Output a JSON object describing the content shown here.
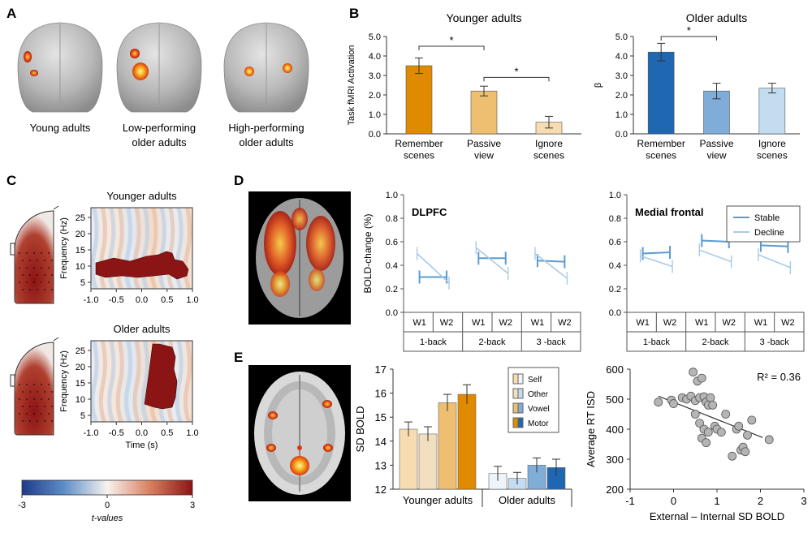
{
  "panel_letters": {
    "a": "A",
    "b": "B",
    "c": "C",
    "d": "D",
    "e": "E"
  },
  "panel_a": {
    "captions": [
      "Young adults",
      "Low-performing\nolder adults",
      "High-performing\nolder adults"
    ]
  },
  "colors": {
    "orange_dark": "#e08a00",
    "orange_mid": "#eebf70",
    "orange_light": "#f6dcb0",
    "blue_dark": "#1f67b1",
    "blue_mid": "#80acd8",
    "blue_light": "#c4dcef",
    "line_stable": "#5b9bd0",
    "line_decline": "#a9cbe8",
    "brain_red": "#8b1414"
  },
  "panel_c": {
    "titles": [
      "Younger adults",
      "Older adults"
    ],
    "ylabel": "Frequency (Hz)",
    "xlabel": "Time (s)",
    "xticks": [
      "-1.0",
      "-0.5",
      "0.0",
      "0.5",
      "1.0"
    ],
    "yticks": [
      "5",
      "10",
      "15",
      "20",
      "25"
    ],
    "colorbar": {
      "min": "-3",
      "mid": "0",
      "max": "3",
      "label": "t-values"
    }
  },
  "chart_data": [
    {
      "type": "bar",
      "title": "Younger adults",
      "ylabel": "Task fMRI Activation",
      "categories": [
        "Remember\nscenes",
        "Passive\nview",
        "Ignore\nscenes"
      ],
      "values": [
        3.5,
        2.2,
        0.6
      ],
      "errors": [
        0.4,
        0.25,
        0.3
      ],
      "ylim": [
        0,
        5
      ],
      "yticks": [
        "0.0",
        "1.0",
        "2.0",
        "3.0",
        "4.0",
        "5.0"
      ],
      "sig": [
        {
          "from": 0,
          "to": 1,
          "label": "*",
          "y": 4.5
        },
        {
          "from": 1,
          "to": 2,
          "label": "*",
          "y": 2.9
        }
      ]
    },
    {
      "type": "bar",
      "title": "Older adults",
      "ylabel": "β",
      "categories": [
        "Remember\nscenes",
        "Passive\nview",
        "Ignore\nscenes"
      ],
      "values": [
        4.2,
        2.2,
        2.35
      ],
      "errors": [
        0.45,
        0.4,
        0.25
      ],
      "ylim": [
        0,
        5
      ],
      "yticks": [
        "0.0",
        "1.0",
        "2.0",
        "3.0",
        "4.0",
        "5.0"
      ],
      "sig": [
        {
          "from": 0,
          "to": 1,
          "label": "*",
          "y": 5.0
        }
      ]
    },
    {
      "type": "line",
      "title": "DLPFC",
      "ylabel": "BOLD-change (%)",
      "ylim": [
        0,
        1
      ],
      "yticks": [
        "0.0",
        "0.2",
        "0.4",
        "0.6",
        "0.8",
        "1.0"
      ],
      "groups": [
        "1-back",
        "2-back",
        "3 -back"
      ],
      "sublabels": [
        "W1",
        "W2"
      ],
      "series": [
        {
          "name": "Stable",
          "values": [
            [
              0.3,
              0.3
            ],
            [
              0.46,
              0.46
            ],
            [
              0.44,
              0.43
            ]
          ]
        },
        {
          "name": "Decline",
          "values": [
            [
              0.5,
              0.25
            ],
            [
              0.55,
              0.33
            ],
            [
              0.5,
              0.29
            ]
          ]
        }
      ]
    },
    {
      "type": "line",
      "title": "Medial frontal",
      "ylim": [
        0,
        1
      ],
      "yticks": [
        "0.0",
        "0.2",
        "0.4",
        "0.6",
        "0.8",
        "1.0"
      ],
      "groups": [
        "1-back",
        "2-back",
        "3 -back"
      ],
      "sublabels": [
        "W1",
        "W2"
      ],
      "legend": {
        "position": "top-right"
      },
      "series": [
        {
          "name": "Stable",
          "values": [
            [
              0.5,
              0.51
            ],
            [
              0.61,
              0.6
            ],
            [
              0.57,
              0.56
            ]
          ]
        },
        {
          "name": "Decline",
          "values": [
            [
              0.48,
              0.39
            ],
            [
              0.53,
              0.43
            ],
            [
              0.49,
              0.38
            ]
          ]
        }
      ]
    },
    {
      "type": "bar",
      "ylabel": "SD BOLD",
      "ylim": [
        12,
        17
      ],
      "yticks": [
        "12",
        "13",
        "14",
        "15",
        "16",
        "17"
      ],
      "groups": [
        "Younger adults",
        "Older adults"
      ],
      "series": [
        {
          "name": "Self",
          "values": [
            14.5,
            12.65
          ],
          "errors": [
            0.3,
            0.3
          ]
        },
        {
          "name": "Other",
          "values": [
            14.3,
            12.45
          ],
          "errors": [
            0.3,
            0.25
          ]
        },
        {
          "name": "Vowel",
          "values": [
            15.6,
            13.0
          ],
          "errors": [
            0.35,
            0.3
          ]
        },
        {
          "name": "Motor",
          "values": [
            15.95,
            12.9
          ],
          "errors": [
            0.4,
            0.35
          ]
        }
      ]
    },
    {
      "type": "scatter",
      "ylabel": "Average RT ISD",
      "xlabel": "External – Internal SD BOLD",
      "xlim": [
        -1,
        3
      ],
      "ylim": [
        200,
        600
      ],
      "xticks": [
        "-1",
        "0",
        "1",
        "2",
        "3"
      ],
      "yticks": [
        "200",
        "300",
        "400",
        "500",
        "600"
      ],
      "annotation": "R² = 0.36",
      "fit": [
        [
          -0.35,
          510
        ],
        [
          2.05,
          372
        ]
      ],
      "points": [
        [
          -0.35,
          490
        ],
        [
          -0.05,
          497
        ],
        [
          0.0,
          485
        ],
        [
          0.2,
          505
        ],
        [
          0.3,
          500
        ],
        [
          0.4,
          510
        ],
        [
          0.45,
          590
        ],
        [
          0.5,
          495
        ],
        [
          0.55,
          560
        ],
        [
          0.6,
          505
        ],
        [
          0.65,
          570
        ],
        [
          0.7,
          508
        ],
        [
          0.75,
          490
        ],
        [
          0.8,
          480
        ],
        [
          0.85,
          505
        ],
        [
          0.5,
          450
        ],
        [
          0.6,
          420
        ],
        [
          0.7,
          400
        ],
        [
          0.8,
          390
        ],
        [
          0.65,
          370
        ],
        [
          0.75,
          355
        ],
        [
          0.95,
          410
        ],
        [
          1.0,
          400
        ],
        [
          1.1,
          390
        ],
        [
          1.2,
          450
        ],
        [
          1.35,
          310
        ],
        [
          1.45,
          400
        ],
        [
          1.5,
          410
        ],
        [
          1.55,
          330
        ],
        [
          1.6,
          340
        ],
        [
          1.65,
          325
        ],
        [
          1.7,
          380
        ],
        [
          1.8,
          430
        ],
        [
          2.2,
          365
        ],
        [
          0.9,
          480
        ]
      ]
    }
  ]
}
